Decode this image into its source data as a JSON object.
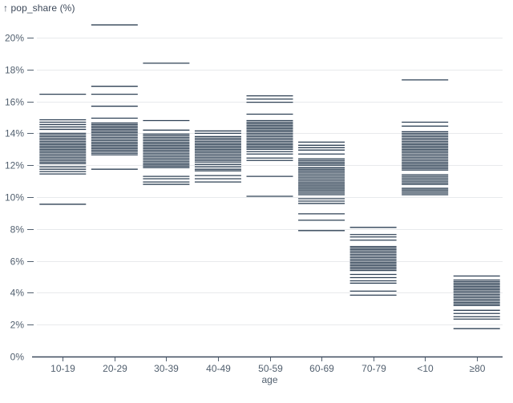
{
  "chart_data": {
    "type": "tick",
    "title": "↑ pop_share (%)",
    "ylabel": "pop_share (%)",
    "xlabel": "age",
    "legend": null,
    "grid": true,
    "colors": {
      "tick_stroke": "#2e4054",
      "gridline": "#e8eaec",
      "baseline": "#3d4a5c",
      "axis_label": "#52606f",
      "title": "#3c4859"
    },
    "y_axis": {
      "min": 0,
      "max": 21,
      "tick_values": [
        0,
        2,
        4,
        6,
        8,
        10,
        12,
        14,
        16,
        18,
        20
      ],
      "tick_labels": [
        "0%",
        "2%",
        "4%",
        "6%",
        "8%",
        "10%",
        "12%",
        "14%",
        "16%",
        "18%",
        "20%"
      ]
    },
    "categories": [
      "10-19",
      "20-29",
      "30-39",
      "40-49",
      "50-59",
      "60-69",
      "70-79",
      "<10",
      "≥80"
    ],
    "series": [
      {
        "category": "10-19",
        "values": [
          16.45,
          14.85,
          14.7,
          14.55,
          14.4,
          14.25,
          14.0,
          13.9,
          13.8,
          13.7,
          13.6,
          13.5,
          13.4,
          13.3,
          13.2,
          13.1,
          13.0,
          12.9,
          12.8,
          12.7,
          12.6,
          12.5,
          12.4,
          12.3,
          12.2,
          12.1,
          11.9,
          11.75,
          11.6,
          11.45,
          9.55
        ]
      },
      {
        "category": "20-29",
        "values": [
          20.8,
          16.95,
          16.45,
          15.7,
          14.95,
          14.65,
          14.55,
          14.45,
          14.35,
          14.25,
          14.15,
          14.05,
          13.95,
          13.85,
          13.75,
          13.65,
          13.55,
          13.45,
          13.35,
          13.25,
          13.15,
          13.05,
          12.95,
          12.85,
          12.75,
          12.65,
          11.75
        ]
      },
      {
        "category": "30-39",
        "values": [
          18.4,
          14.8,
          14.2,
          13.95,
          13.85,
          13.75,
          13.65,
          13.55,
          13.45,
          13.35,
          13.25,
          13.15,
          13.05,
          12.95,
          12.85,
          12.75,
          12.65,
          12.55,
          12.45,
          12.35,
          12.25,
          12.15,
          12.05,
          11.95,
          11.85,
          11.3,
          11.15,
          10.95,
          10.8
        ]
      },
      {
        "category": "40-49",
        "values": [
          14.15,
          14.0,
          13.8,
          13.7,
          13.6,
          13.5,
          13.4,
          13.3,
          13.2,
          13.1,
          13.0,
          12.9,
          12.8,
          12.7,
          12.6,
          12.5,
          12.4,
          12.3,
          12.2,
          12.05,
          11.9,
          11.75,
          11.65,
          11.35,
          11.15,
          10.95
        ]
      },
      {
        "category": "50-59",
        "values": [
          16.35,
          16.15,
          15.95,
          15.2,
          14.8,
          14.7,
          14.6,
          14.5,
          14.4,
          14.3,
          14.2,
          14.1,
          14.0,
          13.9,
          13.8,
          13.7,
          13.6,
          13.5,
          13.4,
          13.3,
          13.2,
          13.1,
          13.0,
          12.85,
          12.7,
          12.45,
          12.3,
          11.3,
          10.05
        ]
      },
      {
        "category": "60-69",
        "values": [
          13.45,
          13.25,
          13.1,
          12.95,
          12.7,
          12.4,
          12.3,
          12.2,
          12.1,
          12.0,
          11.85,
          11.75,
          11.65,
          11.55,
          11.45,
          11.35,
          11.25,
          11.15,
          11.05,
          10.95,
          10.85,
          10.75,
          10.65,
          10.55,
          10.45,
          10.35,
          10.25,
          10.15,
          9.9,
          9.75,
          9.6,
          8.95,
          8.55,
          7.9
        ]
      },
      {
        "category": "70-79",
        "values": [
          8.1,
          7.65,
          7.5,
          7.3,
          6.9,
          6.8,
          6.7,
          6.6,
          6.5,
          6.4,
          6.3,
          6.2,
          6.1,
          6.0,
          5.9,
          5.8,
          5.7,
          5.6,
          5.5,
          5.4,
          5.15,
          4.95,
          4.75,
          4.6,
          4.1,
          3.85
        ]
      },
      {
        "category": "<10",
        "values": [
          17.35,
          14.7,
          14.45,
          14.1,
          14.0,
          13.9,
          13.8,
          13.7,
          13.6,
          13.5,
          13.4,
          13.3,
          13.2,
          13.1,
          13.0,
          12.9,
          12.8,
          12.7,
          12.6,
          12.5,
          12.4,
          12.3,
          12.2,
          12.1,
          12.0,
          11.9,
          11.8,
          11.7,
          11.4,
          11.3,
          11.2,
          11.1,
          11.0,
          10.9,
          10.8,
          10.55,
          10.45,
          10.35,
          10.25,
          10.15
        ]
      },
      {
        "category": "≥80",
        "values": [
          5.05,
          4.8,
          4.7,
          4.6,
          4.5,
          4.4,
          4.3,
          4.2,
          4.1,
          4.0,
          3.9,
          3.8,
          3.7,
          3.6,
          3.5,
          3.4,
          3.3,
          3.2,
          2.9,
          2.7,
          2.5,
          2.35,
          1.75
        ]
      }
    ]
  }
}
